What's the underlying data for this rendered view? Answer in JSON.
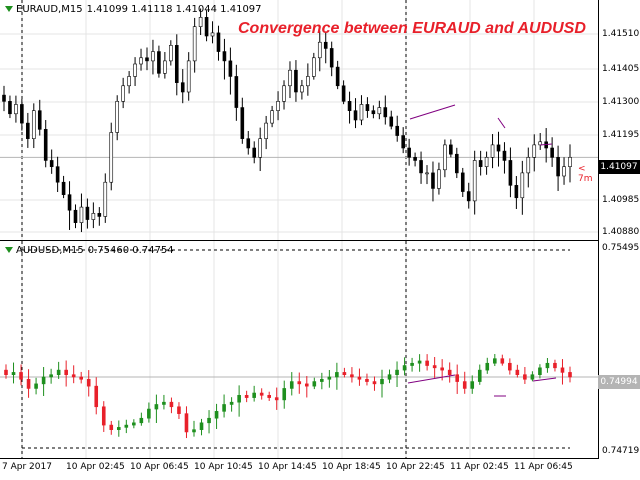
{
  "chart_data": [
    {
      "type": "candlestick",
      "symbol": "EURAUD,M15",
      "ohlc_header": "1.41099 1.41118 1.41044 1.41097",
      "title": "Convergence between EURAUD and AUDUSD",
      "y_ticks": [
        "1.41510",
        "1.41405",
        "1.41300",
        "1.41195",
        "1.40985",
        "1.40880"
      ],
      "current_price": "1.41097",
      "ylim": [
        1.4086,
        1.4158
      ],
      "closes": [
        1.4128,
        1.4124,
        1.4127,
        1.4121,
        1.4116,
        1.4125,
        1.4119,
        1.4109,
        1.4107,
        1.4102,
        1.4098,
        1.4093,
        1.4089,
        1.4094,
        1.409,
        1.4092,
        1.4091,
        1.4102,
        1.4118,
        1.4128,
        1.4133,
        1.4136,
        1.414,
        1.4142,
        1.4141,
        1.4144,
        1.4137,
        1.4141,
        1.4146,
        1.4134,
        1.4131,
        1.4141,
        1.4152,
        1.4155,
        1.4149,
        1.415,
        1.4144,
        1.4141,
        1.4136,
        1.4126,
        1.4116,
        1.4113,
        1.411,
        1.4116,
        1.4121,
        1.4125,
        1.4128,
        1.4133,
        1.4138,
        1.4131,
        1.4133,
        1.4136,
        1.4142,
        1.4147,
        1.4145,
        1.4139,
        1.4133,
        1.4128,
        1.4125,
        1.4122,
        1.4127,
        1.4125,
        1.4124,
        1.4126,
        1.4123,
        1.412,
        1.4117,
        1.4113,
        1.411,
        1.4109,
        1.4105,
        1.4105,
        1.41,
        1.4106,
        1.4114,
        1.4111,
        1.4105,
        1.4099,
        1.4096,
        1.4109,
        1.4107,
        1.411,
        1.4114,
        1.4112,
        1.4109,
        1.4101,
        1.4097,
        1.4105,
        1.411,
        1.4114,
        1.4115,
        1.4113,
        1.411,
        1.4104,
        1.4107,
        1.411
      ]
    },
    {
      "type": "candlestick",
      "symbol": "AUDUSD,M15",
      "ohlc_header": "0.75460 0.74754",
      "y_ticks": [
        "0.75495",
        "0.74719"
      ],
      "current_price": "0.74994",
      "ylim": [
        0.7468,
        0.7554
      ],
      "closes": [
        0.75,
        0.7501,
        0.7498,
        0.7494,
        0.7496,
        0.7499,
        0.75,
        0.7502,
        0.75,
        0.7499,
        0.7498,
        0.7495,
        0.7486,
        0.7478,
        0.7476,
        0.7477,
        0.7478,
        0.7479,
        0.7481,
        0.7485,
        0.7487,
        0.7488,
        0.7486,
        0.7483,
        0.7475,
        0.7476,
        0.7479,
        0.7481,
        0.7484,
        0.7487,
        0.7488,
        0.7491,
        0.749,
        0.7492,
        0.7491,
        0.749,
        0.7489,
        0.7494,
        0.7497,
        0.7496,
        0.7495,
        0.7497,
        0.7498,
        0.7499,
        0.7501,
        0.75,
        0.7499,
        0.7498,
        0.7497,
        0.7496,
        0.7498,
        0.75,
        0.7502,
        0.7504,
        0.7505,
        0.7506,
        0.7504,
        0.7503,
        0.7502,
        0.75,
        0.7497,
        0.7494,
        0.7497,
        0.7502,
        0.7505,
        0.7507,
        0.7505,
        0.7502,
        0.75,
        0.7498,
        0.75,
        0.7503,
        0.7505,
        0.7503,
        0.7501,
        0.7499
      ]
    }
  ],
  "time_axis": [
    "7 Apr 2017",
    "10 Apr 02:45",
    "10 Apr 06:45",
    "10 Apr 10:45",
    "10 Apr 14:45",
    "10 Apr 18:45",
    "10 Apr 22:45",
    "11 Apr 02:45",
    "11 Apr 06:45"
  ],
  "shift_marker": "< 7m",
  "colors": {
    "bull_main": "#000000",
    "bear_main": "#000000",
    "bull_sub": "#1e8f1e",
    "bear_sub": "#e8202a",
    "divergence_line": "#800080",
    "title": "#e8202a"
  }
}
